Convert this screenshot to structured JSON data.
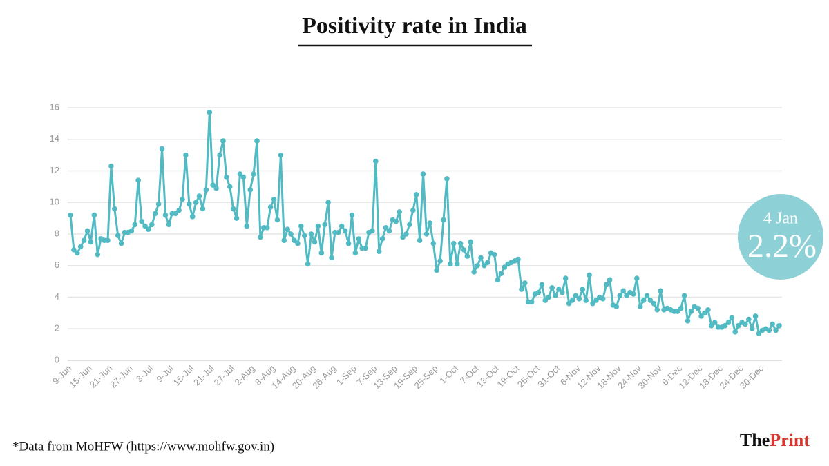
{
  "chart_data": {
    "type": "line",
    "title": "Positivity rate in India",
    "categories": [
      "9-Jun",
      null,
      null,
      null,
      null,
      null,
      "15-Jun",
      null,
      null,
      null,
      null,
      null,
      "21-Jun",
      null,
      null,
      null,
      null,
      null,
      "27-Jun",
      null,
      null,
      null,
      null,
      null,
      "3-Jul",
      null,
      null,
      null,
      null,
      null,
      "9-Jul",
      null,
      null,
      null,
      null,
      null,
      "15-Jul",
      null,
      null,
      null,
      null,
      null,
      "21-Jul",
      null,
      null,
      null,
      null,
      null,
      "27-Jul",
      null,
      null,
      null,
      null,
      null,
      "2-Aug",
      null,
      null,
      null,
      null,
      null,
      "8-Aug",
      null,
      null,
      null,
      null,
      null,
      "14-Aug",
      null,
      null,
      null,
      null,
      null,
      "20-Aug",
      null,
      null,
      null,
      null,
      null,
      "26-Aug",
      null,
      null,
      null,
      null,
      null,
      "1-Sep",
      null,
      null,
      null,
      null,
      null,
      "7-Sep",
      null,
      null,
      null,
      null,
      null,
      "13-Sep",
      null,
      null,
      null,
      null,
      null,
      "19-Sep",
      null,
      null,
      null,
      null,
      null,
      "25-Sep",
      null,
      null,
      null,
      null,
      null,
      "1-Oct",
      null,
      null,
      null,
      null,
      null,
      "7-Oct",
      null,
      null,
      null,
      null,
      null,
      "13-Oct",
      null,
      null,
      null,
      null,
      null,
      "19-Oct",
      null,
      null,
      null,
      null,
      null,
      "25-Oct",
      null,
      null,
      null,
      null,
      null,
      "31-Oct",
      null,
      null,
      null,
      null,
      null,
      "6-Nov",
      null,
      null,
      null,
      null,
      null,
      "12-Nov",
      null,
      null,
      null,
      null,
      null,
      "18-Nov",
      null,
      null,
      null,
      null,
      null,
      "24-Nov",
      null,
      null,
      null,
      null,
      null,
      "30-Nov",
      null,
      null,
      null,
      null,
      null,
      "6-Dec",
      null,
      null,
      null,
      null,
      null,
      "12-Dec",
      null,
      null,
      null,
      null,
      null,
      "18-Dec",
      null,
      null,
      null,
      null,
      null,
      "24-Dec",
      null,
      null,
      null,
      null,
      null,
      "30-Dec",
      null,
      null,
      null,
      null,
      null
    ],
    "values": [
      9.2,
      7.0,
      6.8,
      7.2,
      7.6,
      8.2,
      7.5,
      9.2,
      6.7,
      7.7,
      7.6,
      7.6,
      12.3,
      9.6,
      7.9,
      7.4,
      8.1,
      8.1,
      8.2,
      8.6,
      11.4,
      8.8,
      8.5,
      8.3,
      8.6,
      9.3,
      9.9,
      13.4,
      9.2,
      8.6,
      9.3,
      9.3,
      9.5,
      10.2,
      13.0,
      9.9,
      9.1,
      10.0,
      10.4,
      9.6,
      10.8,
      15.7,
      11.1,
      10.9,
      13.0,
      13.9,
      11.6,
      11.0,
      9.6,
      9.0,
      11.8,
      11.6,
      8.5,
      10.8,
      11.8,
      13.9,
      7.8,
      8.4,
      8.4,
      9.7,
      10.2,
      8.9,
      13.0,
      7.6,
      8.3,
      8.0,
      7.6,
      7.4,
      8.5,
      7.9,
      6.1,
      8.0,
      7.5,
      8.5,
      6.8,
      8.6,
      10.0,
      6.5,
      8.1,
      8.1,
      8.5,
      8.2,
      7.4,
      9.2,
      6.8,
      7.7,
      7.1,
      7.1,
      8.1,
      8.2,
      12.6,
      6.9,
      7.7,
      8.4,
      8.2,
      8.9,
      8.8,
      9.4,
      7.8,
      8.0,
      8.6,
      9.5,
      10.5,
      7.6,
      11.8,
      8.0,
      8.7,
      7.4,
      5.7,
      6.3,
      8.9,
      11.5,
      6.1,
      7.4,
      6.1,
      7.4,
      7.0,
      6.6,
      7.5,
      5.6,
      6.0,
      6.5,
      6.0,
      6.2,
      6.8,
      6.7,
      5.1,
      5.5,
      5.9,
      6.1,
      6.2,
      6.3,
      6.4,
      4.5,
      4.9,
      3.7,
      3.7,
      4.2,
      4.3,
      4.8,
      3.8,
      4.0,
      4.6,
      4.1,
      4.5,
      4.3,
      5.2,
      3.6,
      3.8,
      4.1,
      3.9,
      4.5,
      3.8,
      5.4,
      3.6,
      3.8,
      4.0,
      3.9,
      4.8,
      5.1,
      3.5,
      3.4,
      4.1,
      4.4,
      4.1,
      4.3,
      4.2,
      5.2,
      3.4,
      3.8,
      4.1,
      3.8,
      3.6,
      3.2,
      4.4,
      3.2,
      3.3,
      3.2,
      3.1,
      3.1,
      3.3,
      4.1,
      2.5,
      3.1,
      3.4,
      3.3,
      2.8,
      3.0,
      3.2,
      2.2,
      2.4,
      2.1,
      2.1,
      2.2,
      2.4,
      2.7,
      1.8,
      2.2,
      2.4,
      2.3,
      2.6,
      2.0,
      2.8,
      1.7,
      1.9,
      2.0,
      1.9,
      2.3,
      1.9,
      2.2
    ],
    "color": "#52bac2",
    "ylim": [
      0,
      16
    ],
    "yticks": [
      0,
      2,
      4,
      6,
      8,
      10,
      12,
      14,
      16
    ],
    "grid": true,
    "annotation": {
      "date": "4 Jan",
      "text": "2.2%"
    },
    "source": "*Data from MoHFW (https://www.mohfw.gov.in)",
    "brand": {
      "first": "The",
      "second": "Print"
    }
  }
}
